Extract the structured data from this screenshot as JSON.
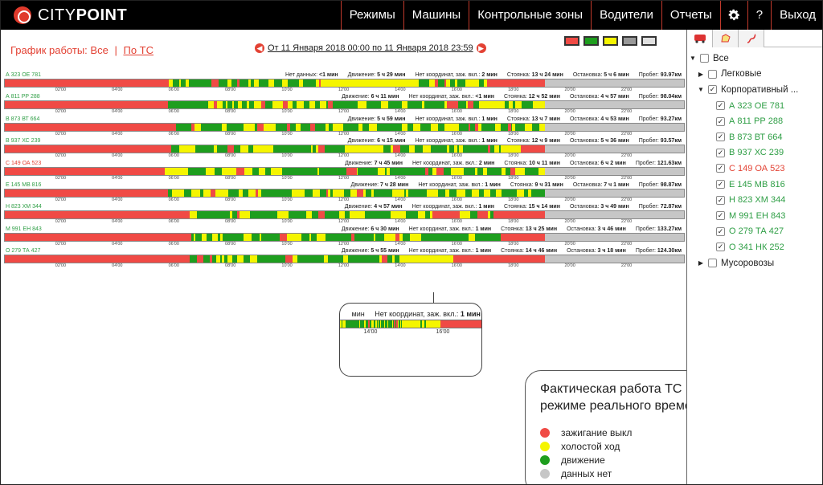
{
  "app": {
    "logo_light": "CITY",
    "logo_bold": "POINT"
  },
  "nav": {
    "items": [
      "Режимы",
      "Машины",
      "Контрольные зоны",
      "Водители",
      "Отчеты"
    ],
    "help": "?",
    "logout": "Выход",
    "settings_icon": "gear-icon"
  },
  "schedule": {
    "title_prefix": "График работы:",
    "all_label": "Все",
    "separator": "|",
    "by_vehicle_label": "По ТС",
    "range": "От 11 Января 2018 00:00 по 11 Января 2018 23:59",
    "prev_icon": "arrow-left-icon",
    "next_icon": "arrow-right-icon"
  },
  "colors": {
    "off": "#f04a45",
    "idle": "#f5f500",
    "move": "#1e9e1e",
    "nodata": "#c6c6c6"
  },
  "filters": [
    {
      "name": "ignition-off",
      "color": "#f04a45"
    },
    {
      "name": "moving",
      "color": "#1e9e1e"
    },
    {
      "name": "idle",
      "color": "#f5f500"
    },
    {
      "name": "no-data",
      "color": "#999999"
    },
    {
      "name": "all",
      "color": "#e0e0e0"
    }
  ],
  "ticks": [
    "02'00",
    "04'00",
    "06'00",
    "08'00",
    "10'00",
    "12'00",
    "14'00",
    "16'00",
    "18'00",
    "20'00",
    "22'00"
  ],
  "vehicles": [
    {
      "plate": "А 323 ОЕ 781",
      "red": false,
      "stats": [
        [
          "Нет данных:",
          "<1 мин"
        ],
        [
          "Движение:",
          "5 ч 29 мин"
        ],
        [
          "Нет координат, заж. вкл.:",
          "2 мин"
        ],
        [
          "Стоянка:",
          "13 ч 24 мин"
        ],
        [
          "Остановка:",
          "5 ч 6 мин"
        ],
        [
          "Пробег:",
          "93.97км"
        ]
      ],
      "segs": [
        [
          "off",
          0,
          0.241
        ],
        [
          "mix",
          0.241,
          0.465
        ],
        [
          "idle",
          0.465,
          0.59
        ],
        [
          "mix",
          0.59,
          0.71
        ],
        [
          "off",
          0.71,
          0.795
        ],
        [
          "nodata",
          0.795,
          1
        ]
      ]
    },
    {
      "plate": "А 811 РР 288",
      "red": false,
      "stats": [
        [
          "Движение:",
          "6 ч 11 мин"
        ],
        [
          "Нет координат, заж. вкл.:",
          "<1 мин"
        ],
        [
          "Стоянка:",
          "12 ч 52 мин"
        ],
        [
          "Остановка:",
          "4 ч 57 мин"
        ],
        [
          "Пробег:",
          "98.04км"
        ]
      ],
      "segs": [
        [
          "off",
          0,
          0.24
        ],
        [
          "mix",
          0.24,
          0.795
        ],
        [
          "nodata",
          0.795,
          1
        ]
      ]
    },
    {
      "plate": "В 873 ВТ 664",
      "red": false,
      "stats": [
        [
          "Движение:",
          "5 ч 59 мин"
        ],
        [
          "Нет координат, заж. вкл.:",
          "1 мин"
        ],
        [
          "Стоянка:",
          "13 ч 7 мин"
        ],
        [
          "Остановка:",
          "4 ч 53 мин"
        ],
        [
          "Пробег:",
          "93.27км"
        ]
      ],
      "segs": [
        [
          "off",
          0,
          0.252
        ],
        [
          "mix",
          0.252,
          0.795
        ],
        [
          "nodata",
          0.795,
          1
        ]
      ]
    },
    {
      "plate": "В 937 ХС 239",
      "red": false,
      "stats": [
        [
          "Движение:",
          "6 ч 15 мин"
        ],
        [
          "Нет координат, заж. вкл.:",
          "1 мин"
        ],
        [
          "Стоянка:",
          "12 ч 9 мин"
        ],
        [
          "Остановка:",
          "5 ч 36 мин"
        ],
        [
          "Пробег:",
          "93.57км"
        ]
      ],
      "segs": [
        [
          "off",
          0,
          0.245
        ],
        [
          "mix",
          0.245,
          0.73
        ],
        [
          "idle",
          0.73,
          0.76
        ],
        [
          "off",
          0.76,
          0.795
        ],
        [
          "nodata",
          0.795,
          1
        ]
      ]
    },
    {
      "plate": "С 149 ОА 523",
      "red": true,
      "stats": [
        [
          "Движение:",
          "7 ч 45 мин"
        ],
        [
          "Нет координат, заж. вкл.:",
          "2 мин"
        ],
        [
          "Стоянка:",
          "10 ч 11 мин"
        ],
        [
          "Остановка:",
          "6 ч 2 мин"
        ],
        [
          "Пробег:",
          "121.63км"
        ]
      ],
      "segs": [
        [
          "off",
          0,
          0.235
        ],
        [
          "idle",
          0.235,
          0.27
        ],
        [
          "mix",
          0.27,
          0.795
        ],
        [
          "nodata",
          0.795,
          1
        ]
      ]
    },
    {
      "plate": "Е 145 МВ 816",
      "red": false,
      "stats": [
        [
          "Движение:",
          "7 ч 28 мин"
        ],
        [
          "Нет координат, заж. вкл.:",
          "1 мин"
        ],
        [
          "Стоянка:",
          "9 ч 31 мин"
        ],
        [
          "Остановка:",
          "7 ч 1 мин"
        ],
        [
          "Пробег:",
          "98.87км"
        ]
      ],
      "segs": [
        [
          "off",
          0,
          0.24
        ],
        [
          "mix",
          0.24,
          0.795
        ],
        [
          "nodata",
          0.795,
          1
        ]
      ]
    },
    {
      "plate": "Н 823 ХМ 344",
      "red": false,
      "stats": [
        [
          "Движение:",
          "4 ч 57 мин"
        ],
        [
          "Нет координат, заж. вкл.:",
          "1 мин"
        ],
        [
          "Стоянка:",
          "15 ч 14 мин"
        ],
        [
          "Остановка:",
          "3 ч 49 мин"
        ],
        [
          "Пробег:",
          "72.87км"
        ]
      ],
      "segs": [
        [
          "off",
          0,
          0.272
        ],
        [
          "mix",
          0.272,
          0.63
        ],
        [
          "off",
          0.63,
          0.67
        ],
        [
          "mix",
          0.67,
          0.72
        ],
        [
          "off",
          0.72,
          0.795
        ],
        [
          "nodata",
          0.795,
          1
        ]
      ]
    },
    {
      "plate": "М 991 ЕН 843",
      "red": false,
      "stats": [
        [
          "Движение:",
          "6 ч 30 мин"
        ],
        [
          "Нет координат, заж. вкл.:",
          "1 мин"
        ],
        [
          "Стоянка:",
          "13 ч 25 мин"
        ],
        [
          "Остановка:",
          "3 ч 46 мин"
        ],
        [
          "Пробег:",
          "133.27км"
        ]
      ],
      "segs": [
        [
          "off",
          0,
          0.275
        ],
        [
          "mix",
          0.275,
          0.73
        ],
        [
          "off",
          0.73,
          0.795
        ],
        [
          "nodata",
          0.795,
          1
        ]
      ]
    },
    {
      "plate": "О 279 ТА 427",
      "red": false,
      "stats": [
        [
          "Движение:",
          "5 ч 55 мин"
        ],
        [
          "Нет координат, заж. вкл.:",
          "1 мин"
        ],
        [
          "Стоянка:",
          "14 ч 46 мин"
        ],
        [
          "Остановка:",
          "3 ч 18 мин"
        ],
        [
          "Пробег:",
          "124.30км"
        ]
      ],
      "segs": [
        [
          "off",
          0,
          0.272
        ],
        [
          "mix",
          0.272,
          0.59
        ],
        [
          "idle",
          0.59,
          0.66
        ],
        [
          "off",
          0.66,
          0.795
        ],
        [
          "nodata",
          0.795,
          1
        ]
      ]
    }
  ],
  "zoom": {
    "text_cut": "мин",
    "label": "Нет координат, заж. вкл.:",
    "value": "1 мин",
    "tick_a": "14'00",
    "tick_b": "16'00"
  },
  "legend": {
    "title": "Фактическая работа ТС в режиме реального времени:",
    "items": [
      {
        "label": "зажигание выкл",
        "color": "#f04a45"
      },
      {
        "label": "холостой ход",
        "color": "#f5f500"
      },
      {
        "label": "движение",
        "color": "#1e9e1e"
      },
      {
        "label": "данных нет",
        "color": "#c6c6c6"
      }
    ]
  },
  "sidebar": {
    "tabs": [
      "truck-icon",
      "zone-icon",
      "route-icon"
    ],
    "root": "Все",
    "groups": [
      "Легковые",
      "Корпоративный ...",
      "Мусоровозы"
    ],
    "children": [
      {
        "label": "А 323 ОЕ 781",
        "red": false
      },
      {
        "label": "А 811 РР 288",
        "red": false
      },
      {
        "label": "В 873 ВТ 664",
        "red": false
      },
      {
        "label": "В 937 ХС 239",
        "red": false
      },
      {
        "label": "С 149 ОА 523",
        "red": true
      },
      {
        "label": "Е 145 МВ 816",
        "red": false
      },
      {
        "label": "Н 823 ХМ 344",
        "red": false
      },
      {
        "label": "М 991 ЕН 843",
        "red": false
      },
      {
        "label": "О 279 ТА 427",
        "red": false
      },
      {
        "label": "О 341 НК 252",
        "red": false
      }
    ],
    "check_mark": "✓"
  }
}
